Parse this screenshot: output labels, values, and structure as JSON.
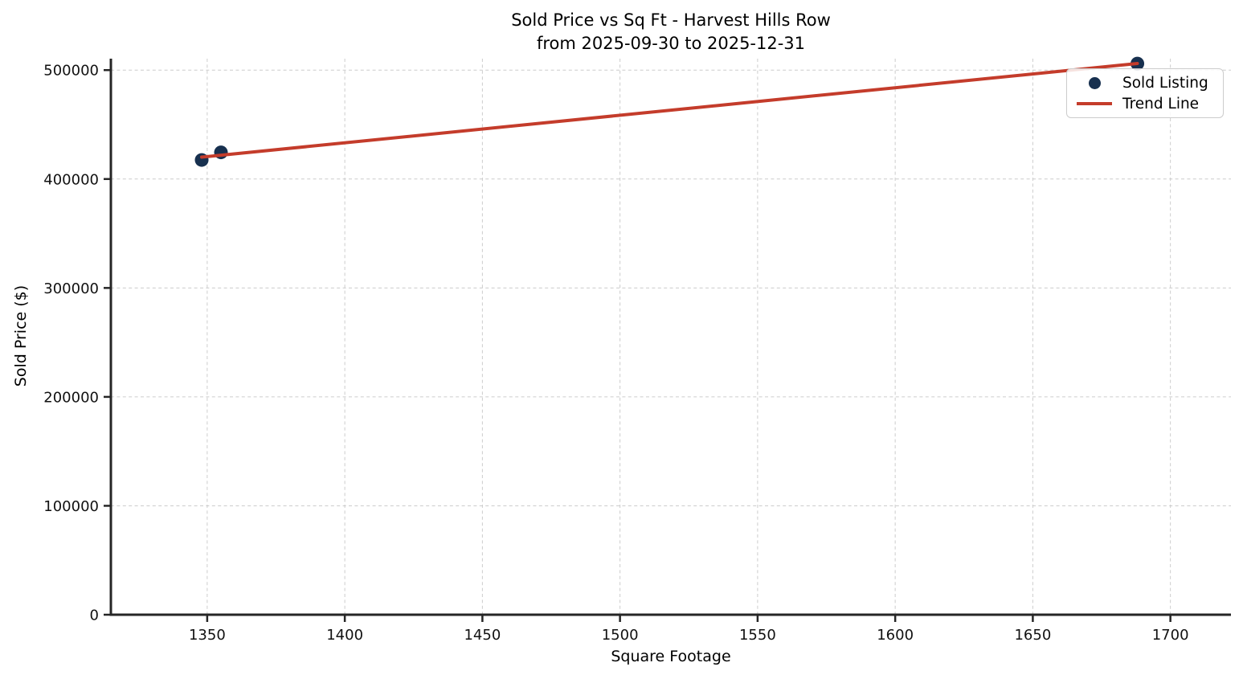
{
  "figure": {
    "title_line1": "Sold Price vs Sq Ft - Harvest Hills Row",
    "title_line2": "from 2025-09-30 to 2025-12-31",
    "xlabel": "Square Footage",
    "ylabel": "Sold Price ($)"
  },
  "legend": {
    "position": "upper right",
    "items": [
      {
        "label": "Sold Listing",
        "marker": "dot",
        "color": "#17304f"
      },
      {
        "label": "Trend Line",
        "marker": "line",
        "color": "#c43c2b"
      }
    ]
  },
  "style": {
    "background": "#ffffff",
    "spine_color": "#262626",
    "grid_color": "#cccccc",
    "tick_label_color": "#111111",
    "scatter_color": "#17304f",
    "trend_color": "#c43c2b"
  },
  "chart_data": {
    "type": "scatter",
    "title": "Sold Price vs Sq Ft - Harvest Hills Row\nfrom 2025-09-30 to 2025-12-31",
    "xlabel": "Square Footage",
    "ylabel": "Sold Price ($)",
    "xlim": [
      1315,
      1722
    ],
    "ylim": [
      0,
      510500
    ],
    "x_ticks": [
      1350,
      1400,
      1450,
      1500,
      1550,
      1600,
      1650,
      1700
    ],
    "y_ticks": [
      0,
      100000,
      200000,
      300000,
      400000,
      500000
    ],
    "grid": true,
    "grid_style": "dashed",
    "legend_position": "upper right",
    "series": [
      {
        "name": "Sold Listing",
        "type": "scatter",
        "color": "#17304f",
        "points": [
          {
            "sqft": 1348,
            "sold_price": 417500
          },
          {
            "sqft": 1355,
            "sold_price": 424500
          },
          {
            "sqft": 1688,
            "sold_price": 506000
          }
        ]
      },
      {
        "name": "Trend Line",
        "type": "line",
        "color": "#c43c2b",
        "points": [
          {
            "sqft": 1348,
            "sold_price": 420100
          },
          {
            "sqft": 1688,
            "sold_price": 506050
          }
        ]
      }
    ]
  }
}
